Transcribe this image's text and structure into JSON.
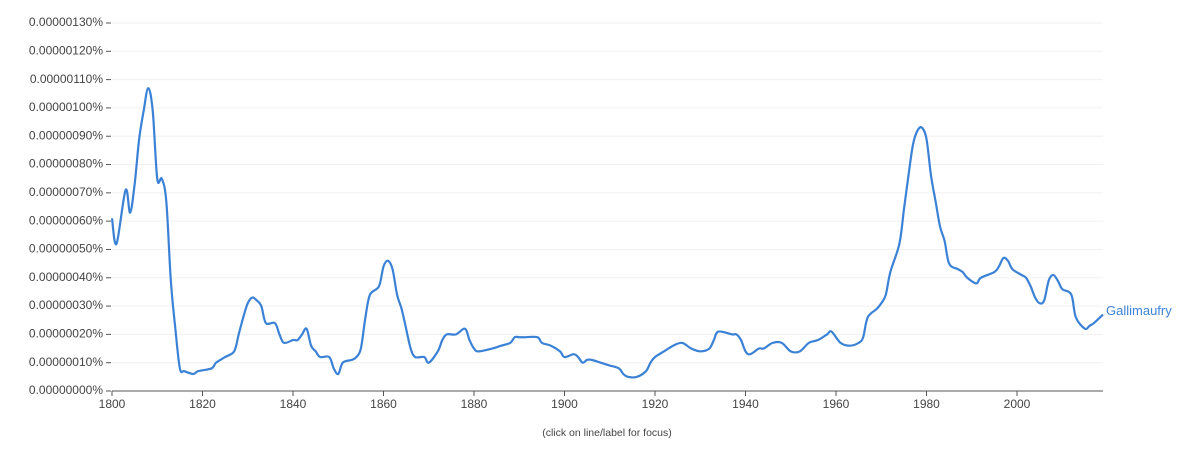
{
  "chart_data": {
    "type": "line",
    "x": [
      1800,
      1801,
      1803,
      1804,
      1805,
      1806,
      1807,
      1808,
      1809,
      1810,
      1811,
      1812,
      1813,
      1814,
      1815,
      1816,
      1818,
      1819,
      1822,
      1823,
      1825,
      1827,
      1828,
      1829,
      1830,
      1831,
      1832,
      1833,
      1834,
      1836,
      1837,
      1838,
      1840,
      1841,
      1842,
      1843,
      1844,
      1845,
      1846,
      1848,
      1849,
      1850,
      1851,
      1853,
      1854,
      1855,
      1856,
      1857,
      1859,
      1860,
      1861,
      1862,
      1863,
      1864,
      1865,
      1866,
      1867,
      1869,
      1870,
      1872,
      1873,
      1874,
      1876,
      1878,
      1879,
      1880,
      1881,
      1884,
      1886,
      1888,
      1889,
      1890,
      1891,
      1894,
      1895,
      1897,
      1899,
      1900,
      1902,
      1903,
      1904,
      1905,
      1906,
      1908,
      1910,
      1912,
      1913,
      1914,
      1916,
      1918,
      1919,
      1920,
      1922,
      1924,
      1926,
      1928,
      1930,
      1932,
      1933,
      1934,
      1937,
      1938,
      1939,
      1940,
      1941,
      1943,
      1944,
      1946,
      1948,
      1950,
      1952,
      1954,
      1956,
      1958,
      1959,
      1961,
      1963,
      1965,
      1966,
      1967,
      1969,
      1970,
      1971,
      1972,
      1974,
      1975,
      1976,
      1977,
      1978,
      1979,
      1980,
      1981,
      1982,
      1983,
      1984,
      1985,
      1987,
      1988,
      1989,
      1991,
      1992,
      1995,
      1996,
      1997,
      1998,
      1999,
      2001,
      2002,
      2003,
      2004,
      2005,
      2006,
      2007,
      2008,
      2009,
      2010,
      2012,
      2013,
      2015,
      2016,
      2017,
      2019
    ],
    "series": [
      {
        "name": "Gallimaufry",
        "color": "#3b82d6",
        "values": [
          6.1e-07,
          5.2e-07,
          7.1e-07,
          6.3e-07,
          7.3e-07,
          8.9e-07,
          9.9e-07,
          1.07e-06,
          9.9e-07,
          7.5e-07,
          7.5e-07,
          6.7e-07,
          3.9e-07,
          2.2e-07,
          8e-08,
          7e-08,
          6e-08,
          7e-08,
          8e-08,
          1e-07,
          1.2e-07,
          1.4e-07,
          2e-07,
          2.6e-07,
          3.1e-07,
          3.3e-07,
          3.2e-07,
          3e-07,
          2.4e-07,
          2.4e-07,
          2e-07,
          1.7e-07,
          1.8e-07,
          1.8e-07,
          2e-07,
          2.2e-07,
          1.6e-07,
          1.4e-07,
          1.2e-07,
          1.2e-07,
          8e-08,
          6e-08,
          1e-07,
          1.1e-07,
          1.2e-07,
          1.5e-07,
          2.6e-07,
          3.4e-07,
          3.7e-07,
          4.4e-07,
          4.6e-07,
          4.3e-07,
          3.4e-07,
          2.9e-07,
          2.2e-07,
          1.5e-07,
          1.2e-07,
          1.2e-07,
          1e-07,
          1.4e-07,
          1.8e-07,
          2e-07,
          2e-07,
          2.2e-07,
          1.8e-07,
          1.5e-07,
          1.4e-07,
          1.5e-07,
          1.6e-07,
          1.7e-07,
          1.9e-07,
          1.9e-07,
          1.9e-07,
          1.9e-07,
          1.7e-07,
          1.6e-07,
          1.4e-07,
          1.2e-07,
          1.3e-07,
          1.2e-07,
          1e-07,
          1.1e-07,
          1.1e-07,
          1e-07,
          9e-08,
          8e-08,
          6e-08,
          5e-08,
          5e-08,
          7e-08,
          1e-07,
          1.2e-07,
          1.4e-07,
          1.6e-07,
          1.7e-07,
          1.5e-07,
          1.4e-07,
          1.5e-07,
          1.8e-07,
          2.1e-07,
          2e-07,
          2e-07,
          1.8e-07,
          1.4e-07,
          1.3e-07,
          1.5e-07,
          1.5e-07,
          1.7e-07,
          1.7e-07,
          1.4e-07,
          1.4e-07,
          1.7e-07,
          1.8e-07,
          2e-07,
          2.1e-07,
          1.7e-07,
          1.6e-07,
          1.7e-07,
          1.9e-07,
          2.6e-07,
          2.9e-07,
          3.1e-07,
          3.4e-07,
          4.2e-07,
          5.2e-07,
          6.4e-07,
          7.6e-07,
          8.7e-07,
          9.2e-07,
          9.3e-07,
          8.9e-07,
          7.6e-07,
          6.7e-07,
          5.8e-07,
          5.3e-07,
          4.5e-07,
          4.3e-07,
          4.2e-07,
          4e-07,
          3.8e-07,
          4e-07,
          4.2e-07,
          4.4e-07,
          4.7e-07,
          4.6e-07,
          4.3e-07,
          4.1e-07,
          4e-07,
          3.7e-07,
          3.3e-07,
          3.1e-07,
          3.2e-07,
          3.9e-07,
          4.1e-07,
          3.9e-07,
          3.6e-07,
          3.4e-07,
          2.6e-07,
          2.2e-07,
          2.3e-07,
          2.4e-07,
          2.7e-07
        ]
      }
    ],
    "xlim": [
      1800,
      2019
    ],
    "xticks": [
      1800,
      1820,
      1840,
      1860,
      1880,
      1900,
      1920,
      1940,
      1960,
      1980,
      2000
    ],
    "ylim": [
      0,
      1.3e-06
    ],
    "yticks": [
      {
        "value": 0,
        "label": "0.00000000%"
      },
      {
        "value": 1e-07,
        "label": "0.00000010%"
      },
      {
        "value": 2e-07,
        "label": "0.00000020%"
      },
      {
        "value": 3e-07,
        "label": "0.00000030%"
      },
      {
        "value": 4e-07,
        "label": "0.00000040%"
      },
      {
        "value": 5e-07,
        "label": "0.00000050%"
      },
      {
        "value": 6e-07,
        "label": "0.00000060%"
      },
      {
        "value": 7e-07,
        "label": "0.00000070%"
      },
      {
        "value": 8e-07,
        "label": "0.00000080%"
      },
      {
        "value": 9e-07,
        "label": "0.00000090%"
      },
      {
        "value": 1e-06,
        "label": "0.00000100%"
      },
      {
        "value": 1.1e-06,
        "label": "0.00000110%"
      },
      {
        "value": 1.2e-06,
        "label": "0.00000120%"
      },
      {
        "value": 1.3e-06,
        "label": "0.00000130%"
      }
    ],
    "grid": true,
    "note": "(click on line/label for focus)"
  }
}
